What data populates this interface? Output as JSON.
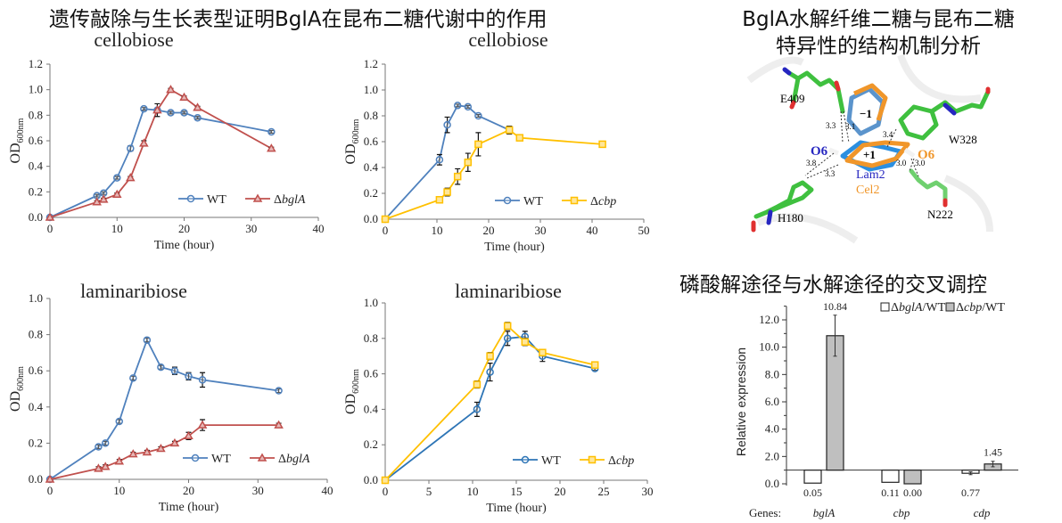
{
  "headings": {
    "left": "遗传敲除与生长表型证明BglA在昆布二糖代谢中的作用",
    "right_line1": "BglA水解纤维二糖与昆布二糖",
    "right_line2": "特异性的结构机制分析",
    "bottom_right": "磷酸解途径与水解途径的交叉调控"
  },
  "structure": {
    "labels": {
      "e409": "E409",
      "w328": "W328",
      "h180": "H180",
      "n222": "N222",
      "o6_left": "O6",
      "o6_right": "O6",
      "lam2": "Lam2",
      "cel2": "Cel2",
      "minus1": "−1",
      "plus1": "+1",
      "d1": "3.3",
      "d2": "3.1",
      "d3": "3.4",
      "d4": "3.8",
      "d5": "3.3",
      "d6": "3.0",
      "d7": "3.0"
    },
    "colors": {
      "carbon": "#3fc03f",
      "laminaribiose": "#2b8fe0",
      "cellobiose": "#f0962a",
      "lam2_text": "#2626c0",
      "cel2_text": "#f0962a"
    }
  },
  "chart_data": [
    {
      "type": "line",
      "title": "cellobiose",
      "xlabel": "Time (hour)",
      "ylabel": "OD",
      "ylabel_sub": "600nm",
      "xlim": [
        0,
        40
      ],
      "ylim": [
        0,
        1.2
      ],
      "xticks": [
        "0",
        "10",
        "20",
        "30",
        "40"
      ],
      "yticks": [
        "0.0",
        "0.2",
        "0.4",
        "0.6",
        "0.8",
        "1.0",
        "1.2"
      ],
      "legend": "bottom-right",
      "series": [
        {
          "name": "WT",
          "prefix": "",
          "italic": "",
          "color": "#4f81bd",
          "marker": "circle",
          "x": [
            0,
            7,
            8,
            10,
            12,
            14,
            16,
            18,
            20,
            22,
            33
          ],
          "y": [
            0,
            0.17,
            0.19,
            0.31,
            0.54,
            0.85,
            0.84,
            0.82,
            0.82,
            0.78,
            0.67
          ],
          "err": [
            0,
            0.01,
            0.01,
            0.01,
            0.02,
            0.01,
            0.01,
            0.01,
            0.01,
            0.01,
            0.01
          ]
        },
        {
          "name": "ΔbglA",
          "prefix": "Δ",
          "italic": "bglA",
          "color": "#c0504d",
          "marker": "triangle",
          "x": [
            0,
            7,
            8,
            10,
            12,
            14,
            16,
            18,
            20,
            22,
            33
          ],
          "y": [
            0,
            0.12,
            0.14,
            0.18,
            0.31,
            0.58,
            0.84,
            1.0,
            0.94,
            0.86,
            0.54
          ],
          "err": [
            0,
            0.01,
            0.01,
            0.01,
            0.01,
            0.02,
            0.05,
            0.01,
            0.01,
            0.01,
            0.01
          ]
        }
      ]
    },
    {
      "type": "line",
      "title": "cellobiose",
      "xlabel": "Time (hour)",
      "ylabel": "OD",
      "ylabel_sub": "600nm",
      "xlim": [
        0,
        50
      ],
      "ylim": [
        0,
        1.2
      ],
      "xticks": [
        "0",
        "10",
        "20",
        "30",
        "40",
        "50"
      ],
      "yticks": [
        "0.0",
        "0.2",
        "0.4",
        "0.6",
        "0.8",
        "1.0",
        "1.2"
      ],
      "legend": "bottom-right",
      "series": [
        {
          "name": "WT",
          "prefix": "",
          "italic": "",
          "color": "#4f81bd",
          "marker": "circle",
          "x": [
            0,
            10.5,
            12,
            14,
            16,
            18,
            24
          ],
          "y": [
            0,
            0.46,
            0.73,
            0.88,
            0.87,
            0.8,
            0.69
          ],
          "err": [
            0,
            0.04,
            0.06,
            0.01,
            0.01,
            0.01,
            0.03
          ]
        },
        {
          "name": "Δcbp",
          "prefix": "Δ",
          "italic": "cbp",
          "color": "#ffc000",
          "marker": "square",
          "x": [
            0,
            10.5,
            12,
            14,
            16,
            18,
            24,
            26,
            42
          ],
          "y": [
            0,
            0.15,
            0.21,
            0.33,
            0.44,
            0.58,
            0.69,
            0.63,
            0.58
          ],
          "err": [
            0,
            0.01,
            0.03,
            0.06,
            0.07,
            0.09,
            0.03,
            0.01,
            0.02
          ]
        }
      ]
    },
    {
      "type": "line",
      "title": "laminaribiose",
      "xlabel": "Time (hour)",
      "ylabel": "OD",
      "ylabel_sub": "600nm",
      "xlim": [
        0,
        40
      ],
      "ylim": [
        0,
        1.0
      ],
      "xticks": [
        "0",
        "10",
        "20",
        "30",
        "40"
      ],
      "yticks": [
        "0.0",
        "0.2",
        "0.4",
        "0.6",
        "0.8",
        "1.0"
      ],
      "legend": "bottom-right",
      "series": [
        {
          "name": "WT",
          "prefix": "",
          "italic": "",
          "color": "#4f81bd",
          "marker": "circle",
          "x": [
            0,
            7,
            8,
            10,
            12,
            14,
            16,
            18,
            20,
            22,
            33
          ],
          "y": [
            0,
            0.18,
            0.2,
            0.32,
            0.56,
            0.77,
            0.62,
            0.6,
            0.57,
            0.55,
            0.49
          ],
          "err": [
            0,
            0.01,
            0.01,
            0.01,
            0.01,
            0.01,
            0.01,
            0.02,
            0.02,
            0.04,
            0.01
          ]
        },
        {
          "name": "ΔbglA",
          "prefix": "Δ",
          "italic": "bglA",
          "color": "#c0504d",
          "marker": "triangle",
          "x": [
            0,
            7,
            8,
            10,
            12,
            14,
            16,
            18,
            20,
            22,
            33
          ],
          "y": [
            0,
            0.06,
            0.07,
            0.1,
            0.14,
            0.15,
            0.17,
            0.2,
            0.24,
            0.3,
            0.3
          ],
          "err": [
            0,
            0.01,
            0.01,
            0.01,
            0.01,
            0.01,
            0.01,
            0.01,
            0.02,
            0.03,
            0.01
          ]
        }
      ]
    },
    {
      "type": "line",
      "title": "laminaribiose",
      "xlabel": "Time (hour)",
      "ylabel": "OD",
      "ylabel_sub": "600nm",
      "xlim": [
        0,
        30
      ],
      "ylim": [
        0,
        1.0
      ],
      "xticks": [
        "0",
        "5",
        "10",
        "15",
        "20",
        "25",
        "30"
      ],
      "yticks": [
        "0.0",
        "0.2",
        "0.4",
        "0.6",
        "0.8",
        "1.0"
      ],
      "legend": "bottom-right",
      "series": [
        {
          "name": "WT",
          "prefix": "",
          "italic": "",
          "color": "#2e75b6",
          "marker": "circle",
          "x": [
            0,
            10.5,
            12,
            14,
            16,
            18,
            24
          ],
          "y": [
            0,
            0.4,
            0.61,
            0.8,
            0.81,
            0.7,
            0.63
          ],
          "err": [
            0,
            0.04,
            0.05,
            0.04,
            0.03,
            0.03,
            0.01
          ]
        },
        {
          "name": "Δcbp",
          "prefix": "Δ",
          "italic": "cbp",
          "color": "#ffc000",
          "marker": "square",
          "x": [
            0,
            10.5,
            12,
            14,
            16,
            18,
            24
          ],
          "y": [
            0,
            0.54,
            0.7,
            0.87,
            0.78,
            0.72,
            0.65
          ],
          "err": [
            0,
            0.02,
            0.02,
            0.02,
            0.02,
            0.01,
            0.01
          ]
        }
      ]
    },
    {
      "type": "bar",
      "ylabel": "Relative expression",
      "ylim": [
        0,
        13
      ],
      "baseline": 1.0,
      "yticks": [
        "0.0",
        "2.0",
        "4.0",
        "6.0",
        "8.0",
        "10.0",
        "12.0"
      ],
      "categories_label": "Genes:",
      "categories": [
        "bglA",
        "cbp",
        "cdp"
      ],
      "legend": "top-right",
      "series": [
        {
          "name": "ΔbglA/WT",
          "prefix": "Δ",
          "italic": "bglA",
          "suffix": "/WT",
          "color": "#ffffff",
          "values": [
            0.05,
            0.11,
            0.77
          ],
          "labels": [
            "0.05",
            "0.11",
            "0.77"
          ],
          "err": [
            0,
            0,
            0.1
          ]
        },
        {
          "name": "Δcbp/WT",
          "prefix": "Δ",
          "italic": "cbp",
          "suffix": "/WT",
          "color": "#bfbfbf",
          "values": [
            10.84,
            0.0,
            1.45
          ],
          "labels": [
            "10.84",
            "0.00",
            "1.45"
          ],
          "err": [
            1.5,
            0,
            0.2
          ]
        }
      ]
    }
  ]
}
